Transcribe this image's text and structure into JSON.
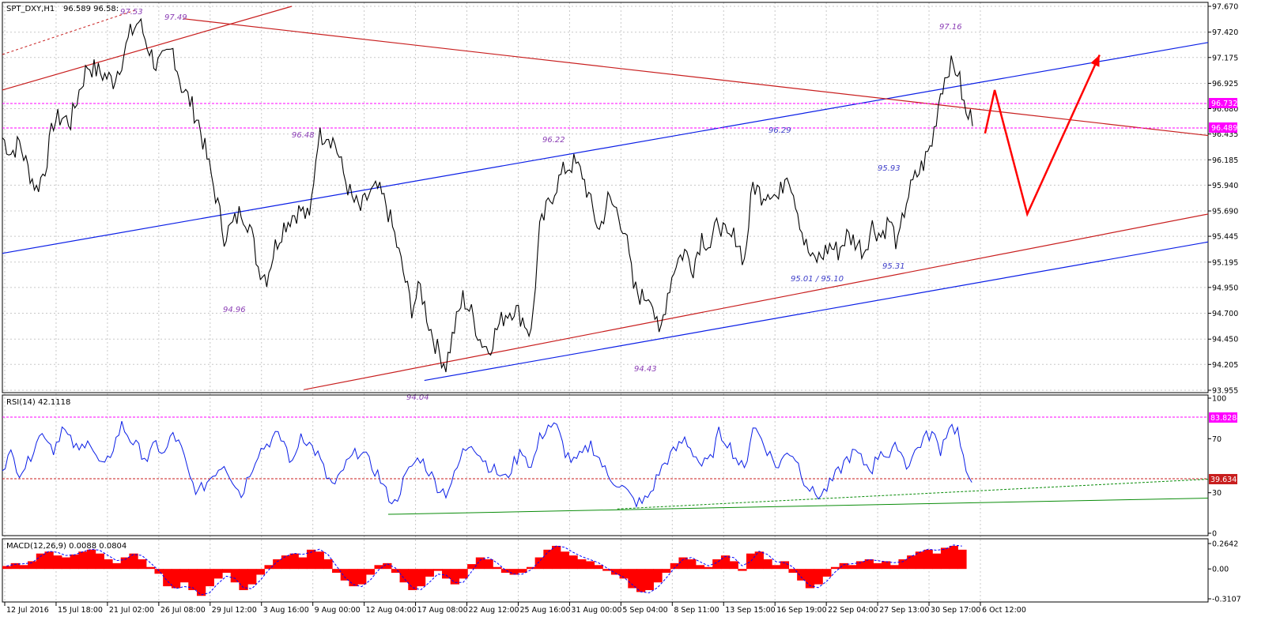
{
  "header": {
    "symbol": "SPT_DXY,H1",
    "quote": "96.589 96.58:"
  },
  "colors": {
    "price": "#000000",
    "channel_blue": "#0a1ee6",
    "channel_red": "#c81e1e",
    "level_magenta": "#ff00ff",
    "label_purple": "#8a3cb4",
    "label_blue": "#3c3cc8",
    "rsi_line": "#0a1ee6",
    "rsi_trend": "#0a8c0a",
    "macd_hist": "#ff0000",
    "macd_signal": "#0000ff",
    "forecast": "#ff0000",
    "grid": "#c8c8c8"
  },
  "price_labels": [
    {
      "text": "97.53"
    },
    {
      "text": "97.49"
    },
    {
      "text": "96.48"
    },
    {
      "text": "94.96"
    },
    {
      "text": "96.22"
    },
    {
      "text": "96.29"
    },
    {
      "text": "95.93"
    },
    {
      "text": "97.16"
    },
    {
      "text": "94.43"
    },
    {
      "text": "94.04"
    },
    {
      "text": "95.31"
    },
    {
      "text": "95.01  / 95.10"
    }
  ],
  "levels": {
    "upper": "96.732",
    "lower": "96.489"
  },
  "rsi_panel": {
    "title": "RSI(14) 42.1118",
    "current": "39.6341",
    "top_level": "83.8284"
  },
  "macd_panel": {
    "title": "MACD(12,26,9) 0.0088 0.0804"
  },
  "chart_data": [
    {
      "type": "line",
      "name": "main",
      "ylim": [
        93.955,
        97.67
      ],
      "y_ticks": [
        "97.670",
        "97.420",
        "97.175",
        "96.925",
        "96.680",
        "96.435",
        "96.185",
        "95.940",
        "95.690",
        "95.445",
        "95.195",
        "94.950",
        "94.700",
        "94.450",
        "94.205",
        "93.955"
      ],
      "x_ticks": [
        "12 Jul 2016",
        "15 Jul 18:00",
        "21 Jul 02:00",
        "26 Jul 08:00",
        "29 Jul 12:00",
        "3 Aug 16:00",
        "9 Aug 00:00",
        "12 Aug 04:00",
        "17 Aug 08:00",
        "22 Aug 12:00",
        "25 Aug 16:00",
        "31 Aug 00:00",
        "5 Sep 04:00",
        "8 Sep 11:00",
        "13 Sep 15:00",
        "16 Sep 19:00",
        "22 Sep 04:00",
        "27 Sep 13:00",
        "30 Sep 17:00",
        "6 Oct 12:00"
      ],
      "close_series": [
        96.4,
        96.25,
        96.35,
        96.1,
        95.9,
        96.1,
        96.55,
        96.6,
        96.55,
        96.85,
        97.1,
        97.05,
        97.0,
        96.95,
        97.15,
        97.4,
        97.53,
        97.3,
        97.1,
        97.15,
        97.25,
        96.9,
        96.75,
        96.55,
        96.2,
        95.85,
        95.45,
        95.55,
        95.7,
        95.55,
        95.15,
        95.05,
        95.35,
        95.55,
        95.65,
        95.7,
        95.6,
        96.4,
        96.45,
        96.35,
        96.05,
        95.8,
        95.7,
        95.85,
        95.9,
        95.75,
        95.45,
        95.1,
        94.75,
        94.95,
        94.6,
        94.35,
        94.2,
        94.55,
        94.85,
        94.7,
        94.45,
        94.35,
        94.55,
        94.7,
        94.75,
        94.65,
        94.5,
        95.5,
        95.75,
        95.95,
        96.1,
        96.15,
        96.05,
        95.75,
        95.5,
        95.8,
        95.7,
        95.5,
        94.95,
        94.85,
        94.9,
        94.45,
        94.9,
        95.2,
        95.3,
        95.15,
        95.45,
        95.35,
        95.6,
        95.4,
        95.45,
        95.2,
        95.95,
        95.85,
        95.9,
        95.8,
        96.1,
        95.8,
        95.4,
        95.2,
        95.25,
        95.35,
        95.3,
        95.45,
        95.4,
        95.3,
        95.55,
        95.45,
        95.6,
        95.35,
        95.8,
        96.0,
        96.15,
        96.35,
        96.85,
        97.1,
        97.05,
        96.6
      ],
      "channels": {
        "blue_upper": [
          {
            "t": 0,
            "v": 95.28
          },
          {
            "t": 1,
            "v": 97.32
          }
        ],
        "blue_lower": [
          {
            "t": 0.35,
            "v": 94.05
          },
          {
            "t": 1,
            "v": 95.39
          }
        ],
        "red_upper": [
          {
            "t": 0,
            "v": 96.86
          },
          {
            "t": 0.24,
            "v": 97.67
          }
        ],
        "red_lower": [
          {
            "t": 0.25,
            "v": 93.96
          },
          {
            "t": 1,
            "v": 95.66
          }
        ],
        "red_resistance": [
          {
            "t": 0.15,
            "v": 97.55
          },
          {
            "t": 1,
            "v": 96.42
          }
        ]
      },
      "forecast_path": [
        {
          "t": 0.815,
          "v": 96.44
        },
        {
          "t": 0.823,
          "v": 96.86
        },
        {
          "t": 0.85,
          "v": 95.66
        },
        {
          "t": 0.91,
          "v": 97.2
        }
      ]
    },
    {
      "type": "line",
      "name": "RSI(14)",
      "ylim": [
        0,
        100
      ],
      "y_ticks": [
        "100",
        "70",
        "30",
        "0"
      ],
      "levels": [
        83.8284,
        39.6341
      ],
      "series_values": [
        50,
        58,
        46,
        52,
        70,
        74,
        62,
        78,
        68,
        60,
        72,
        55,
        48,
        64,
        80,
        70,
        62,
        55,
        66,
        58,
        74,
        62,
        40,
        30,
        38,
        46,
        52,
        40,
        28,
        45,
        60,
        66,
        72,
        68,
        50,
        74,
        66,
        58,
        42,
        34,
        48,
        56,
        62,
        52,
        44,
        30,
        22,
        38,
        50,
        56,
        46,
        35,
        30,
        42,
        60,
        68,
        58,
        50,
        45,
        40,
        52,
        62,
        48,
        70,
        80,
        78,
        60,
        52,
        58,
        66,
        55,
        42,
        38,
        32,
        24,
        22,
        30,
        45,
        55,
        62,
        70,
        60,
        50,
        54,
        74,
        68,
        56,
        46,
        80,
        70,
        58,
        48,
        62,
        56,
        40,
        30,
        28,
        36,
        45,
        55,
        60,
        52,
        48,
        62,
        56,
        66,
        50,
        60,
        70,
        74,
        62,
        80,
        76,
        42
      ],
      "trendlines": [
        {
          "from": {
            "t": 0.32,
            "v": 14
          },
          "to": {
            "t": 1,
            "v": 26
          }
        },
        {
          "from": {
            "t": 0.51,
            "v": 18
          },
          "to": {
            "t": 1,
            "v": 40
          }
        }
      ]
    },
    {
      "type": "bar",
      "name": "MACD(12,26,9)",
      "ylim": [
        -0.3107,
        0.2642
      ],
      "y_ticks": [
        "0.2642",
        "0.00",
        "-0.3107"
      ],
      "histogram": [
        0.03,
        0.06,
        0.04,
        0.08,
        0.16,
        0.18,
        0.14,
        0.12,
        0.15,
        0.18,
        0.2,
        0.16,
        0.1,
        0.06,
        0.12,
        0.16,
        0.1,
        0.02,
        -0.05,
        -0.18,
        -0.2,
        -0.14,
        -0.22,
        -0.28,
        -0.18,
        -0.1,
        -0.04,
        -0.14,
        -0.22,
        -0.16,
        -0.06,
        0.04,
        0.1,
        0.14,
        0.16,
        0.12,
        0.2,
        0.18,
        0.1,
        -0.04,
        -0.12,
        -0.18,
        -0.16,
        -0.06,
        0.04,
        0.06,
        -0.04,
        -0.14,
        -0.22,
        -0.18,
        -0.08,
        -0.02,
        -0.1,
        -0.16,
        -0.1,
        0.05,
        0.12,
        0.1,
        0.02,
        -0.04,
        -0.06,
        -0.04,
        0.02,
        0.12,
        0.2,
        0.24,
        0.18,
        0.14,
        0.1,
        0.08,
        0.04,
        -0.02,
        -0.06,
        -0.1,
        -0.2,
        -0.24,
        -0.22,
        -0.14,
        -0.04,
        0.06,
        0.12,
        0.1,
        0.04,
        0.02,
        0.1,
        0.14,
        0.08,
        -0.02,
        0.16,
        0.18,
        0.1,
        0.04,
        0.08,
        -0.04,
        -0.12,
        -0.2,
        -0.16,
        -0.08,
        0.02,
        0.06,
        0.04,
        0.08,
        0.1,
        0.06,
        0.08,
        0.04,
        0.1,
        0.14,
        0.18,
        0.2,
        0.16,
        0.22,
        0.24,
        0.2
      ]
    }
  ]
}
